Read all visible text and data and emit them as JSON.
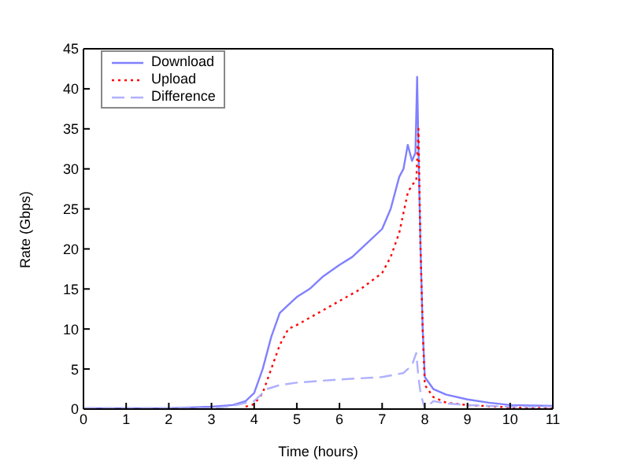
{
  "chart_data": {
    "type": "line",
    "xlabel": "Time (hours)",
    "ylabel": "Rate (Gbps)",
    "xlim": [
      0,
      11
    ],
    "xticks": [
      0,
      1,
      2,
      3,
      4,
      5,
      6,
      7,
      8,
      9,
      10,
      11
    ],
    "ylim": [
      0,
      45
    ],
    "yticks": [
      0,
      5,
      10,
      15,
      20,
      25,
      30,
      35,
      40,
      45
    ],
    "legend": "top left",
    "marker": "none",
    "grid": false,
    "series": [
      {
        "name": "Download",
        "color": "#8080ff",
        "line_style": "solid",
        "x": [
          0,
          1,
          2,
          3,
          3.5,
          3.8,
          4,
          4.2,
          4.4,
          4.6,
          4.8,
          5,
          5.3,
          5.6,
          6,
          6.3,
          6.6,
          7,
          7.2,
          7.4,
          7.5,
          7.6,
          7.7,
          7.78,
          7.82,
          7.86,
          7.9,
          7.95,
          8,
          8.2,
          8.5,
          9,
          9.5,
          10,
          11
        ],
        "values": [
          0.1,
          0.1,
          0.1,
          0.3,
          0.5,
          1,
          2,
          5,
          9,
          12,
          13,
          14,
          15,
          16.5,
          18,
          19,
          20.5,
          22.5,
          25,
          29,
          30,
          33,
          31,
          32,
          41.5,
          30,
          20,
          10,
          4,
          2.5,
          1.8,
          1.2,
          0.8,
          0.5,
          0.4
        ]
      },
      {
        "name": "Upload",
        "color": "#ff0000",
        "line_style": "dotted",
        "x": [
          3.8,
          4,
          4.2,
          4.4,
          4.6,
          4.8,
          5,
          5.5,
          6,
          6.5,
          7,
          7.2,
          7.4,
          7.6,
          7.7,
          7.8,
          7.85,
          7.9,
          7.95,
          8,
          8.2,
          8.5,
          9,
          10,
          11
        ],
        "values": [
          0.3,
          0.6,
          2,
          5,
          8,
          10,
          10.5,
          12,
          13.5,
          15,
          17,
          19,
          22,
          27,
          28,
          28.5,
          35,
          20,
          10,
          3,
          1.5,
          0.8,
          0.5,
          0.2,
          0.1
        ]
      },
      {
        "name": "Difference",
        "color": "#b0b0ff",
        "line_style": "dashed",
        "x": [
          0,
          1,
          2,
          3,
          3.5,
          4,
          4.3,
          4.6,
          5,
          6,
          7,
          7.5,
          7.7,
          7.8,
          7.85,
          7.9,
          8,
          8.2,
          8.5,
          9,
          10,
          11
        ],
        "values": [
          0.1,
          0.1,
          0.1,
          0.1,
          0.4,
          1,
          2.5,
          3,
          3.3,
          3.7,
          4,
          4.5,
          5.5,
          7,
          4,
          2,
          0,
          1,
          0.7,
          0.5,
          0.3,
          0.3
        ]
      }
    ]
  }
}
